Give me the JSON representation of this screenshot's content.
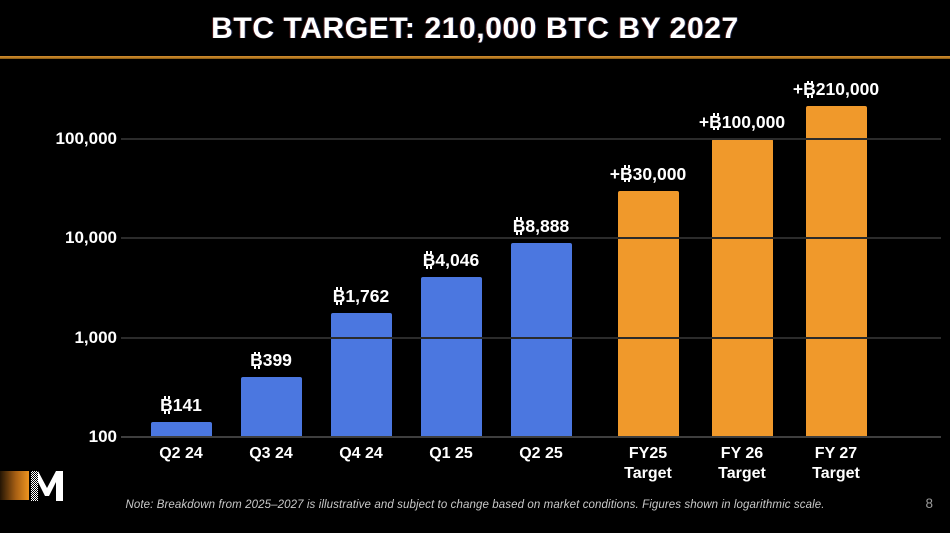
{
  "header": {
    "title": "BTC TARGET: 210,000 BTC BY 2027"
  },
  "colors": {
    "background": "#000000",
    "bar_actual_blue": "#4B77E0",
    "bar_target_orange": "#F0992B",
    "divider_gold": "#B97A22",
    "gridline": "#2B2B2B",
    "axis_line": "#3E3E3E",
    "text_primary": "#FFFFFF",
    "note_text": "#C9C9C9",
    "page_number": "#9A9A9A"
  },
  "chart_data": {
    "type": "bar",
    "scale": "logarithmic",
    "title": "BTC TARGET: 210,000 BTC BY 2027",
    "xlabel": "",
    "ylabel": "",
    "ylim": [
      100,
      400000
    ],
    "grid": "horizontal",
    "legend": "none",
    "y_ticks": [
      {
        "value": 100000,
        "label": "100,000"
      },
      {
        "value": 10000,
        "label": "10,000"
      },
      {
        "value": 1000,
        "label": "1,000"
      },
      {
        "value": 100,
        "label": "100"
      }
    ],
    "series": [
      {
        "name": "actual",
        "color": "#4B77E0"
      },
      {
        "name": "target",
        "color": "#F0992B"
      }
    ],
    "bars": [
      {
        "category": "Q2 24",
        "value": 141,
        "label": "₿141",
        "series": "actual"
      },
      {
        "category": "Q3 24",
        "value": 399,
        "label": "₿399",
        "series": "actual"
      },
      {
        "category": "Q4 24",
        "value": 1762,
        "label": "₿1,762",
        "series": "actual"
      },
      {
        "category": "Q1 25",
        "value": 4046,
        "label": "₿4,046",
        "series": "actual"
      },
      {
        "category": "Q2 25",
        "value": 8888,
        "label": "₿8,888",
        "series": "actual"
      },
      {
        "category": "FY25\nTarget",
        "value": 30000,
        "label": "+₿30,000",
        "series": "target"
      },
      {
        "category": "FY 26\nTarget",
        "value": 100000,
        "label": "+₿100,000",
        "series": "target"
      },
      {
        "category": "FY 27\nTarget",
        "value": 210000,
        "label": "+₿210,000",
        "series": "target"
      }
    ]
  },
  "footer": {
    "note": "Note: Breakdown from 2025–2027 is illustrative and subject to change based on market conditions. Figures shown in logarithmic scale.",
    "page_number": "8",
    "logo_letter": "M"
  }
}
